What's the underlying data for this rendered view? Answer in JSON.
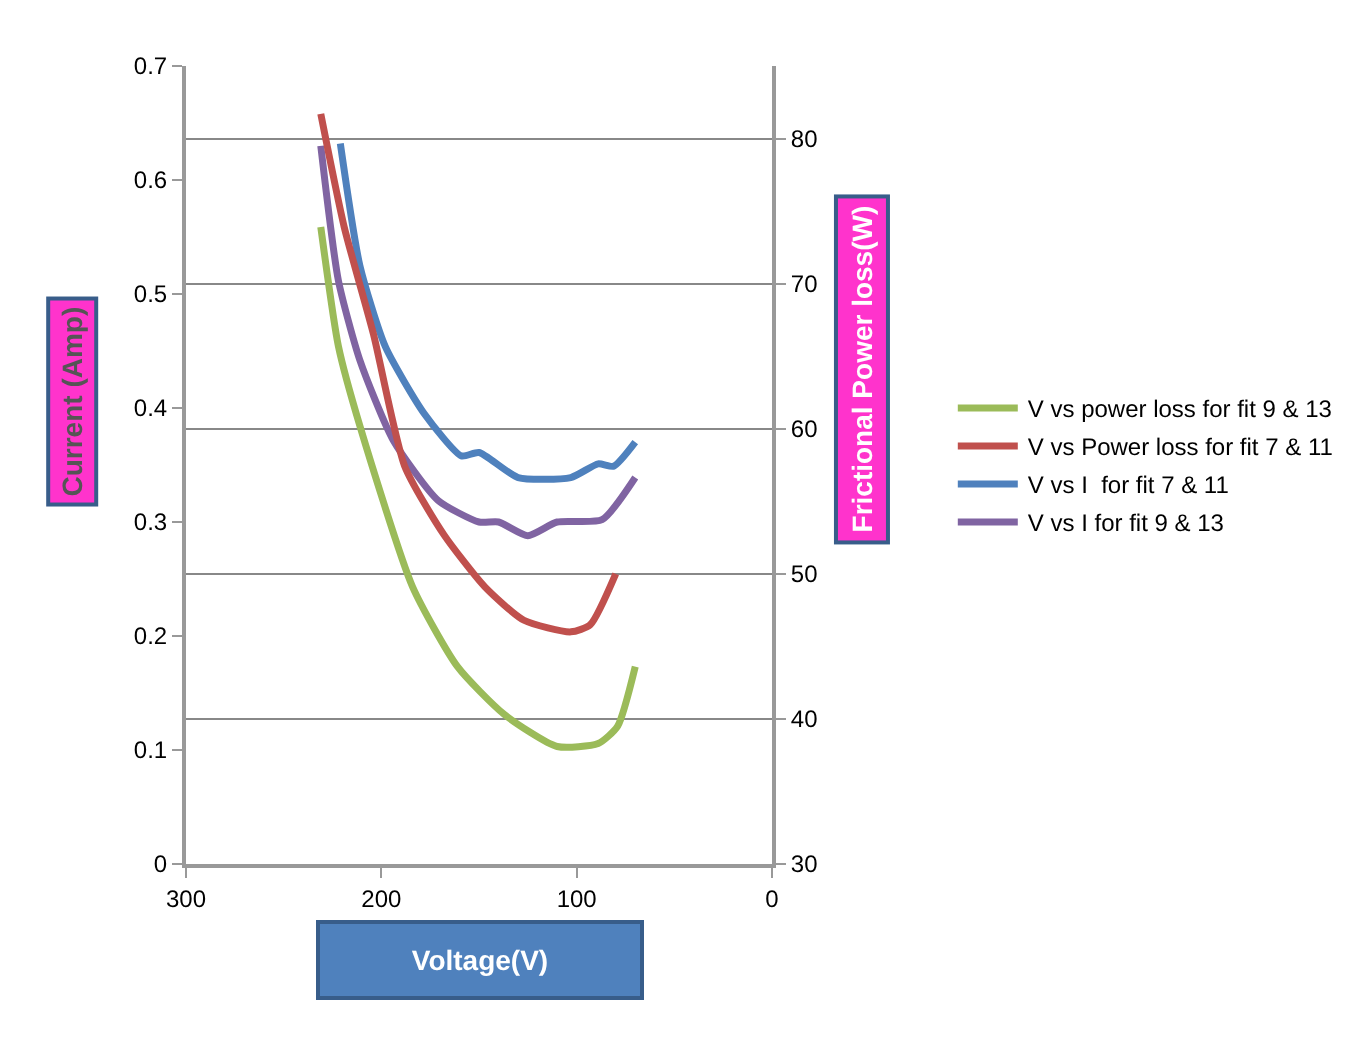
{
  "chart_data": {
    "type": "line",
    "xlabel": "Voltage(V)",
    "ylabel": "Current (Amp)",
    "y2label": "Frictional Power loss(W)",
    "xlim": [
      300,
      0
    ],
    "xticks": [
      300,
      200,
      100,
      0
    ],
    "ylim": [
      0,
      0.7
    ],
    "yticks": [
      {
        "value": 0,
        "label": "0"
      },
      0.1,
      0.2,
      0.3,
      0.4,
      0.5,
      0.6,
      0.7
    ],
    "y2lim": [
      30,
      85
    ],
    "y2ticks": [
      30,
      40,
      50,
      60,
      70,
      80
    ],
    "grid": "y",
    "legend": "right",
    "marker": "none",
    "line_style": "solid",
    "series": [
      {
        "name": "V vs power loss for fit 9 & 13",
        "color": "#9bbb59",
        "axis": "y2",
        "x": [
          231,
          222,
          211,
          184,
          161,
          137,
          110,
          89,
          79,
          70
        ],
        "values": [
          73.9,
          65.7,
          60.2,
          49.1,
          43.6,
          40.3,
          38.1,
          38.3,
          39.5,
          43.6
        ]
      },
      {
        "name": "V vs Power loss for fit 7 & 11",
        "color": "#c0504d",
        "axis": "y2",
        "x": [
          231,
          219,
          204,
          188,
          168,
          147,
          127,
          103,
          93,
          80
        ],
        "values": [
          81.7,
          73.9,
          66.5,
          57.4,
          52.7,
          49.1,
          46.8,
          46.0,
          46.5,
          50.0
        ]
      },
      {
        "name": "V vs I  for fit 7 & 11",
        "color": "#4f81bd",
        "axis": "y",
        "x": [
          221,
          211,
          198,
          178,
          159,
          150,
          130,
          103,
          89,
          81,
          70
        ],
        "values": [
          0.632,
          0.525,
          0.454,
          0.395,
          0.358,
          0.361,
          0.339,
          0.339,
          0.351,
          0.349,
          0.37
        ]
      },
      {
        "name": "V vs I for fit 9 & 13",
        "color": "#8064a2",
        "axis": "y",
        "x": [
          231,
          222,
          211,
          194,
          171,
          150,
          140,
          125,
          110,
          87,
          70
        ],
        "values": [
          0.63,
          0.512,
          0.442,
          0.372,
          0.319,
          0.3,
          0.3,
          0.288,
          0.3,
          0.302,
          0.339
        ]
      }
    ]
  }
}
